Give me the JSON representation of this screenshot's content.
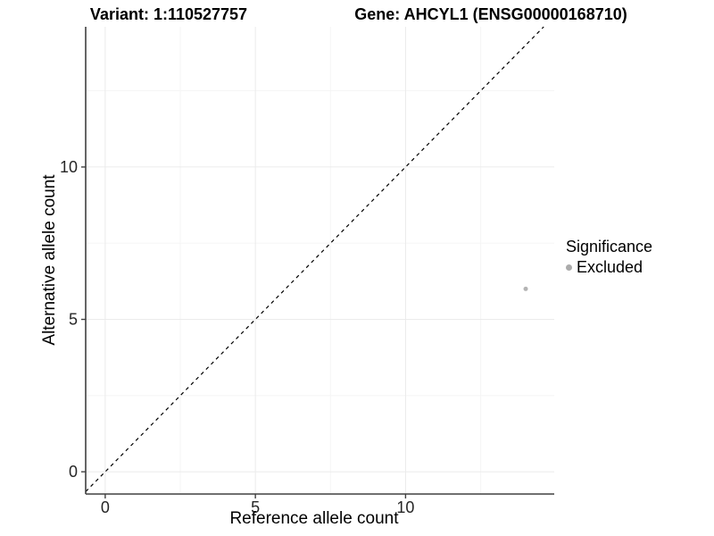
{
  "chart_data": {
    "type": "scatter",
    "title_left": "Variant: 1:110527757",
    "title_right": "Gene: AHCYL1 (ENSG00000168710)",
    "xlabel": "Reference allele count",
    "ylabel": "Alternative allele count",
    "xlim": [
      -0.65,
      14.95
    ],
    "ylim": [
      -0.73,
      14.6
    ],
    "x_ticks": [
      0,
      5,
      10
    ],
    "y_ticks": [
      0,
      5,
      10
    ],
    "x_minor": [
      2.5,
      7.5,
      12.5
    ],
    "y_minor": [
      2.5,
      7.5,
      12.5
    ],
    "grid": true,
    "points": [
      {
        "x": 14,
        "y": 6,
        "series": "Excluded"
      }
    ],
    "point_radius_px": 2.5,
    "abline": {
      "slope": 1,
      "intercept": 0,
      "style": "dashed"
    },
    "legend": {
      "position": "right",
      "title": "Significance",
      "items": [
        {
          "label": "Excluded",
          "color": "#ababab"
        }
      ]
    },
    "colors": {
      "point": "#b4b4b4",
      "axis_line": "#404040",
      "tick_mark": "#404040",
      "tick_label": "#262626",
      "grid_major": "#ebebeb",
      "grid_minor": "#f5f5f5",
      "abline": "#000000",
      "background": "#ffffff"
    }
  }
}
